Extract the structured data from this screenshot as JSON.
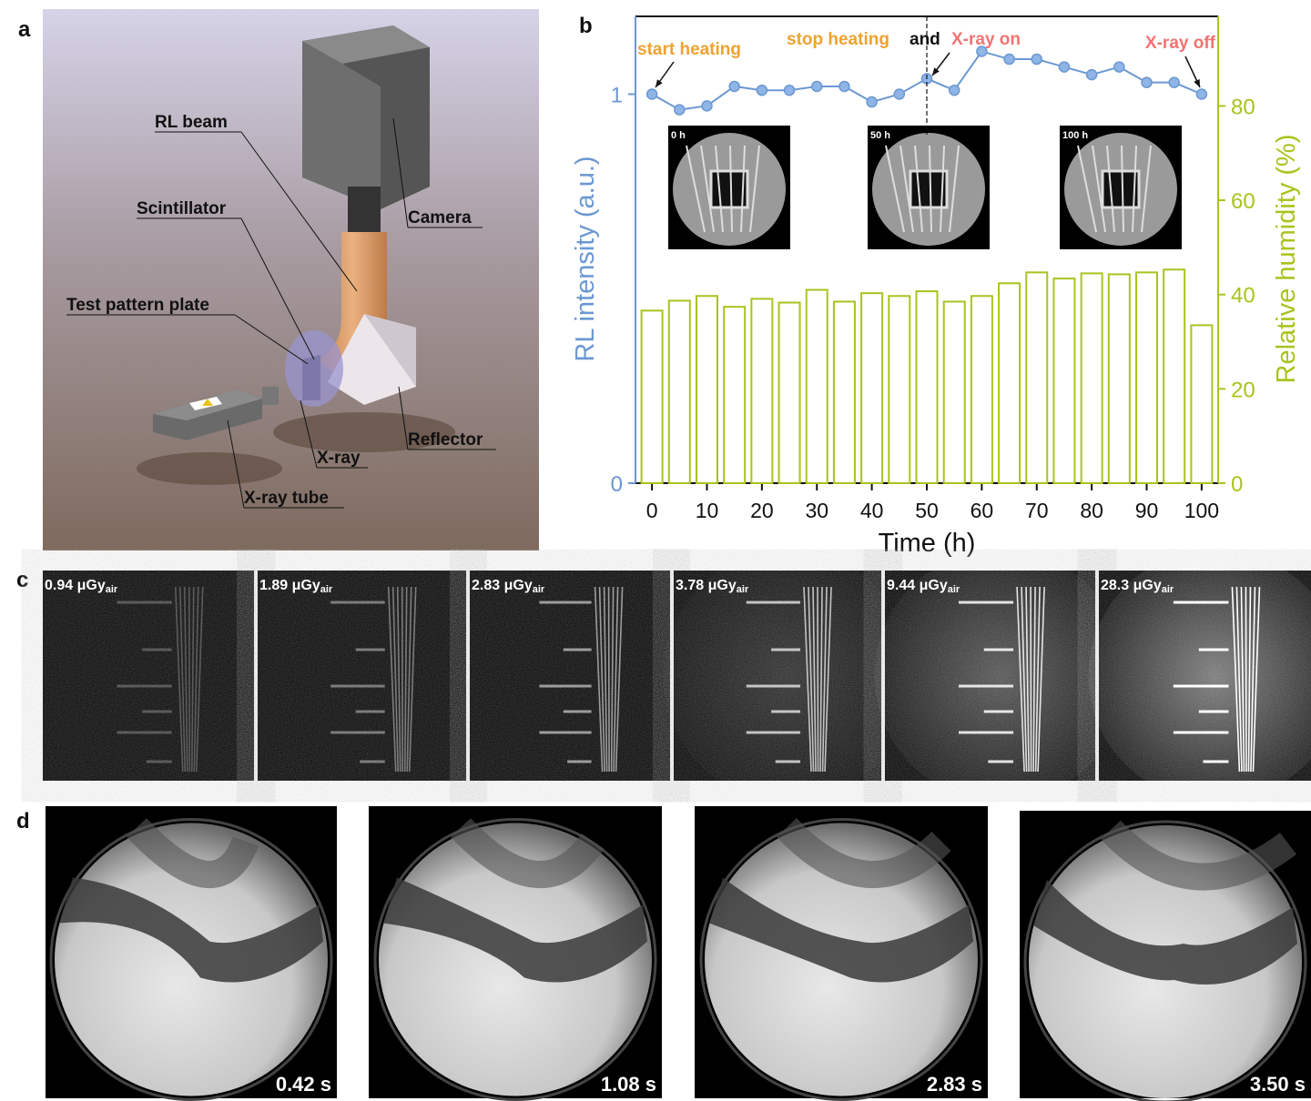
{
  "panel_letters": [
    "a",
    "b",
    "c",
    "d"
  ],
  "schematic_labels": [
    "RL beam",
    "Scintillator",
    "Test pattern plate",
    "Camera",
    "X-ray",
    "Reflector",
    "X-ray tube"
  ],
  "chart_data": {
    "type": "bar",
    "xlabel": "Time (h)",
    "ylabel": "RL intensity (a.u.)",
    "y2label": "Relative humidity (%)",
    "x": [
      0,
      5,
      10,
      15,
      20,
      25,
      30,
      35,
      40,
      45,
      50,
      55,
      60,
      65,
      70,
      75,
      80,
      85,
      90,
      95,
      100
    ],
    "xlim": [
      -3,
      103
    ],
    "xticks": [
      0,
      10,
      20,
      30,
      40,
      50,
      60,
      70,
      80,
      90,
      100
    ],
    "ylim": [
      0,
      1.2
    ],
    "yticks": [
      0,
      1
    ],
    "y2lim": [
      0,
      99
    ],
    "y2ticks": [
      0,
      20,
      40,
      60,
      80
    ],
    "series": [
      {
        "type": "bar",
        "color": "#a8c41e",
        "axis": "y2",
        "values": [
          36.6,
          38.7,
          39.7,
          37.4,
          39.1,
          38.3,
          41.0,
          38.5,
          40.3,
          39.7,
          40.7,
          38.5,
          39.7,
          42.4,
          44.7,
          43.4,
          44.5,
          44.3,
          44.7,
          45.3,
          33.5
        ]
      },
      {
        "type": "line",
        "color": "#6b98d2",
        "values": [
          1.0,
          0.96,
          0.97,
          1.02,
          1.01,
          1.01,
          1.02,
          1.02,
          0.98,
          1.0,
          1.04,
          1.01,
          1.11,
          1.09,
          1.09,
          1.07,
          1.05,
          1.07,
          1.03,
          1.03,
          1.0
        ]
      }
    ],
    "vline": 50,
    "annotations": [
      {
        "text": "start heating",
        "color": "#eea230"
      },
      {
        "text": "stop heating",
        "color": "#eea230"
      },
      {
        "text": "and",
        "color": "#111111"
      },
      {
        "text": "X-ray on",
        "color": "#f27373"
      },
      {
        "text": "X-ray off",
        "color": "#f27373"
      }
    ],
    "inset_labels": [
      "0 h",
      "50 h",
      "100 h"
    ]
  },
  "dose_images": [
    {
      "dose": "0.94 μGy",
      "sub": "air"
    },
    {
      "dose": "1.89 μGy",
      "sub": "air"
    },
    {
      "dose": "2.83 μGy",
      "sub": "air"
    },
    {
      "dose": "3.78 μGy",
      "sub": "air"
    },
    {
      "dose": "9.44 μGy",
      "sub": "air"
    },
    {
      "dose": "28.3 μGy",
      "sub": "air"
    }
  ],
  "time_images": [
    "0.42 s",
    "1.08 s",
    "2.83 s",
    "3.50 s"
  ]
}
